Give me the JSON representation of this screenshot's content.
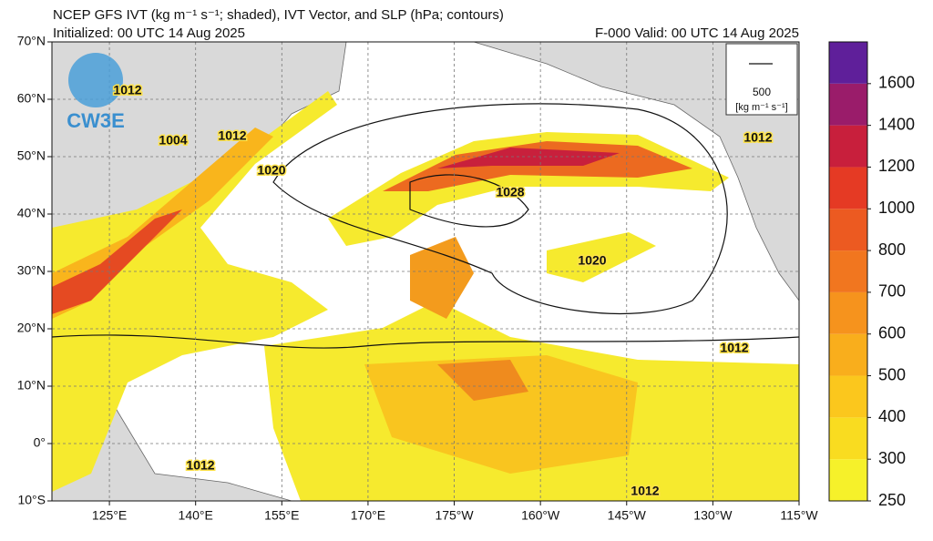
{
  "header": {
    "title": "NCEP GFS IVT (kg m⁻¹ s⁻¹; shaded), IVT Vector, and SLP (hPa; contours)",
    "initialized": "Initialized: 00 UTC 14 Aug 2025",
    "valid": "F-000  Valid: 00 UTC 14 Aug 2025"
  },
  "logo": "CW3E",
  "map": {
    "xlim": [
      115,
      245
    ],
    "ylim": [
      -10,
      70
    ],
    "xticks": [
      {
        "value": 125,
        "label": "125°E"
      },
      {
        "value": 140,
        "label": "140°E"
      },
      {
        "value": 155,
        "label": "155°E"
      },
      {
        "value": 170,
        "label": "170°E"
      },
      {
        "value": 185,
        "label": "175°W"
      },
      {
        "value": 200,
        "label": "160°W"
      },
      {
        "value": 215,
        "label": "145°W"
      },
      {
        "value": 230,
        "label": "130°W"
      },
      {
        "value": 245,
        "label": "115°W"
      }
    ],
    "yticks": [
      {
        "value": 70,
        "label": "70°N"
      },
      {
        "value": 60,
        "label": "60°N"
      },
      {
        "value": 50,
        "label": "50°N"
      },
      {
        "value": 40,
        "label": "40°N"
      },
      {
        "value": 30,
        "label": "30°N"
      },
      {
        "value": 20,
        "label": "20°N"
      },
      {
        "value": 10,
        "label": "10°N"
      },
      {
        "value": 0,
        "label": "0°"
      },
      {
        "value": -10,
        "label": "10°S"
      }
    ],
    "grid": true,
    "contour_labels": [
      "1012",
      "1004",
      "1012",
      "1020",
      "1028",
      "1020",
      "1012",
      "1012",
      "1012",
      "1012"
    ],
    "vector_legend": {
      "value": 500,
      "units": "[kg m⁻¹ s⁻¹]"
    }
  },
  "colorbar": {
    "ticks": [
      250,
      300,
      400,
      500,
      600,
      700,
      800,
      1000,
      1200,
      1400,
      1600
    ],
    "colors": [
      "#f6f12a",
      "#f9dc20",
      "#fbc71d",
      "#f9ae1c",
      "#f6931d",
      "#f1761f",
      "#ec5a21",
      "#e53a24",
      "#c81f3c",
      "#9a1c6a",
      "#5f1f9a"
    ]
  }
}
